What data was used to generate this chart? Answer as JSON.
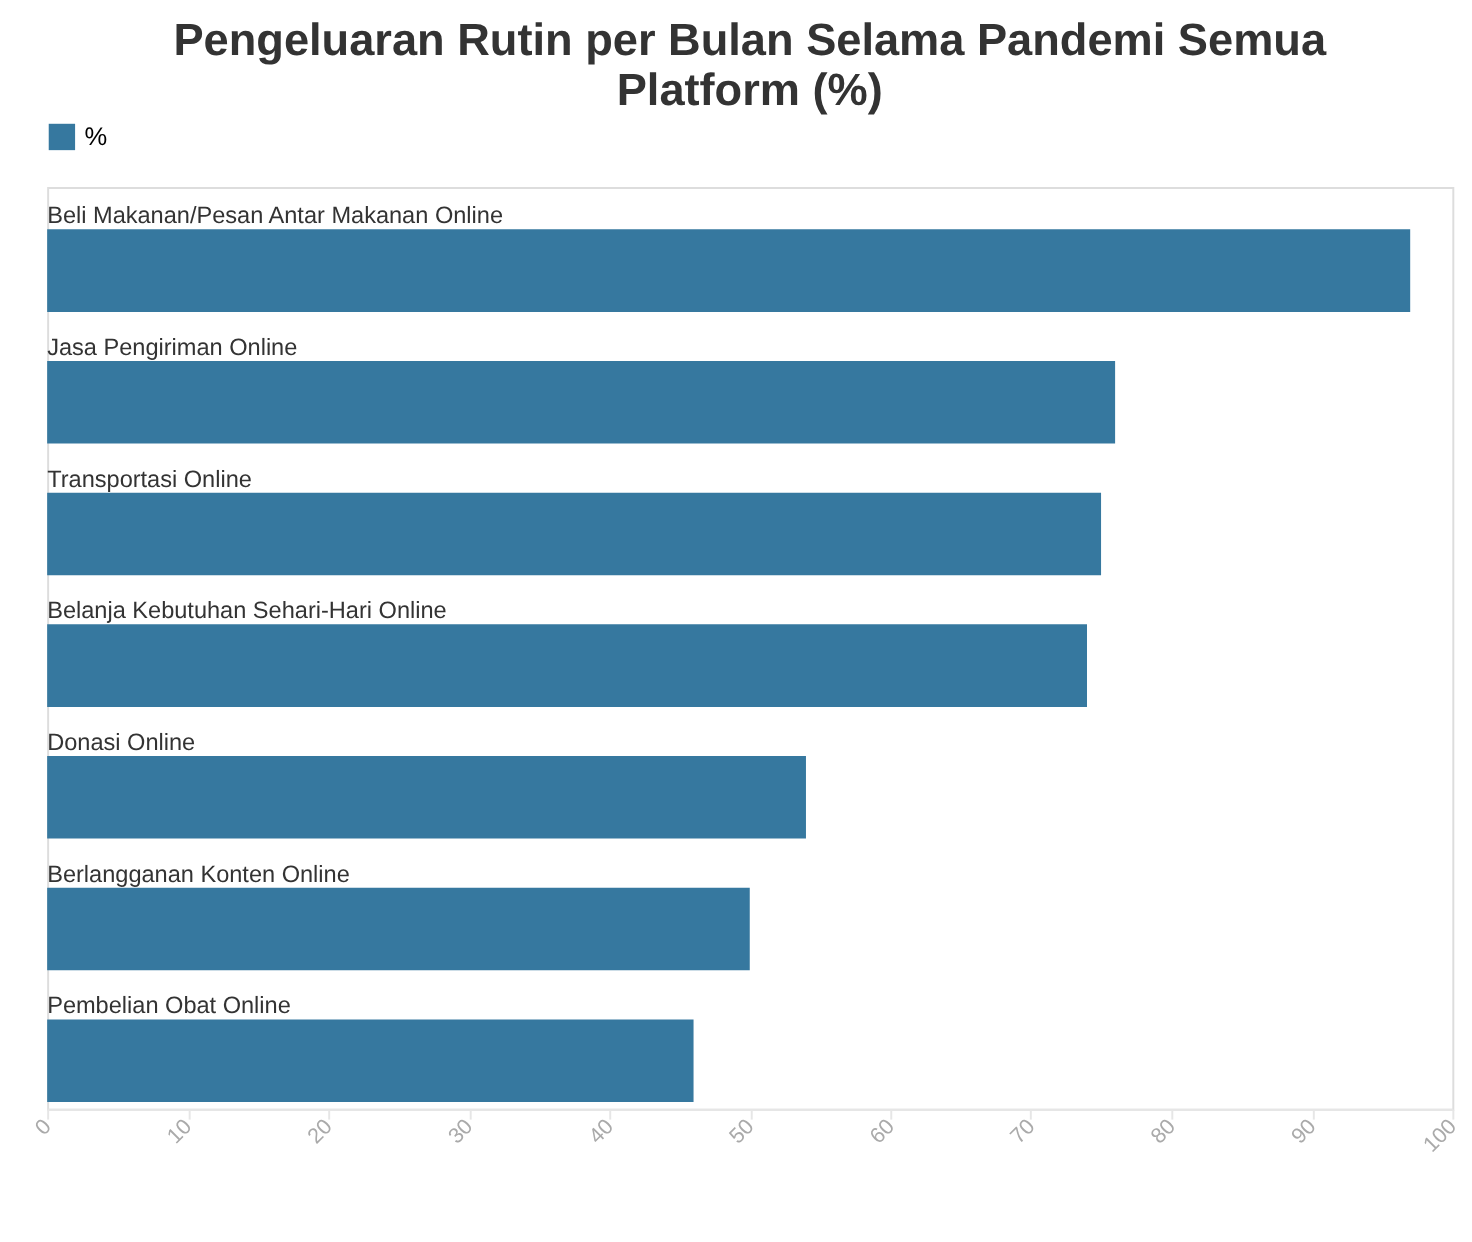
{
  "chart_data": {
    "type": "bar",
    "orientation": "horizontal",
    "title": "Pengeluaran Rutin per Bulan Selama Pandemi Semua Platform (%)",
    "categories": [
      "Beli Makanan/Pesan Antar Makanan Online",
      "Jasa Pengiriman Online",
      "Transportasi Online",
      "Belanja Kebutuhan Sehari-Hari Online",
      "Donasi Online",
      "Berlangganan Konten Online",
      "Pembelian Obat Online"
    ],
    "series": [
      {
        "name": "%",
        "color": "#36789f",
        "values": [
          97,
          76,
          75,
          74,
          54,
          50,
          46
        ]
      }
    ],
    "xlim": [
      0,
      100
    ],
    "xticks": [
      0,
      10,
      20,
      30,
      40,
      50,
      60,
      70,
      80,
      90,
      100
    ],
    "grid": false,
    "legend": "top"
  }
}
